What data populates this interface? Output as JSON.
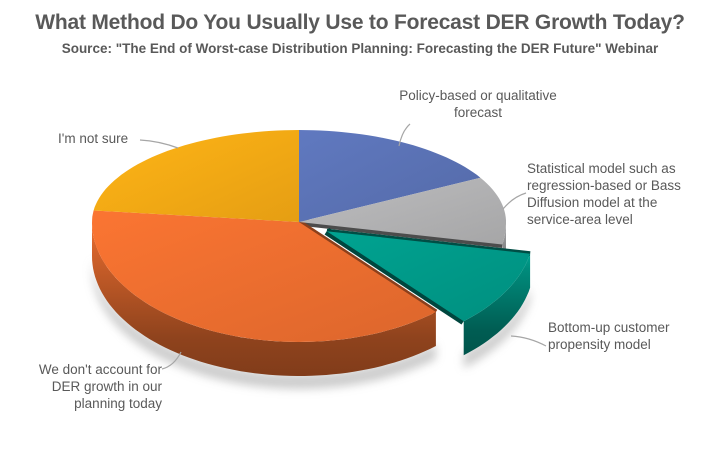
{
  "chart_data": {
    "type": "pie",
    "style": "3d-exploded-pie",
    "title": "What Method Do You Usually Use to Forecast DER Growth Today?",
    "subtitle": "Source: \"The End of Worst-case Distribution Planning: Forecasting the DER Future\" Webinar",
    "start_angle_deg": 90,
    "direction": "clockwise",
    "values_unit": "percent of responses (estimated from slice angles; chart shows no numeric labels)",
    "legend_position": "none",
    "labels_style": "callouts with gray leader lines",
    "slices": [
      {
        "label": "Policy-based or qualitative forecast",
        "value": 17,
        "color": "#5B73B7",
        "exploded": false
      },
      {
        "label": "Statistical model such as regression-based or Bass Diffusion model at the service-area level",
        "value": 11,
        "color": "#B4B4B6",
        "exploded": false
      },
      {
        "label": "Bottom-up customer propensity model",
        "value": 10.5,
        "color": "#009B8A",
        "exploded": true
      },
      {
        "label": "We don't account for DER growth in our planning today",
        "value": 38.5,
        "color": "#EF6F30",
        "exploded": false
      },
      {
        "label": "I'm not sure",
        "value": 23,
        "color": "#F9AC15",
        "exploded": false
      }
    ],
    "leader_line_color": "#A6A6A6",
    "text_color": "#595959"
  }
}
